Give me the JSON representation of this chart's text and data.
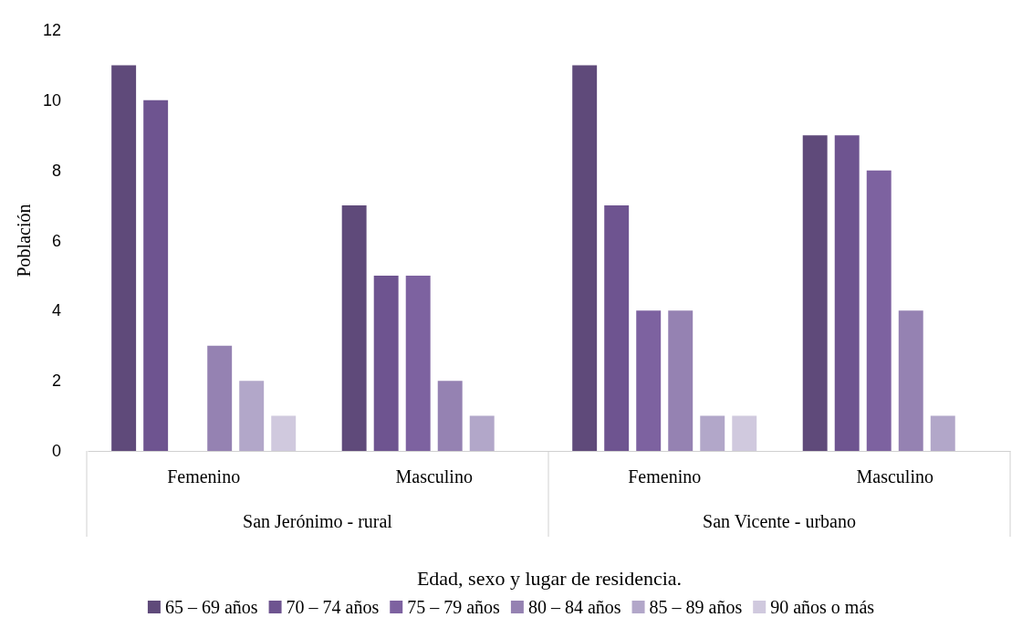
{
  "chart_data": {
    "type": "bar",
    "xlabel": "Edad, sexo y lugar de residencia.",
    "ylabel": "Población",
    "categories": [
      "Femenino",
      "Masculino",
      "Femenino",
      "Masculino"
    ],
    "annotations": [
      "San Jerónimo - rural",
      "San Vicente - urbano"
    ],
    "series": [
      {
        "name": "65 – 69 años",
        "color": "#5f4a7a",
        "values": [
          11,
          7,
          11,
          9
        ]
      },
      {
        "name": "70 – 74 años",
        "color": "#6e5490",
        "values": [
          10,
          5,
          7,
          9
        ]
      },
      {
        "name": "75 – 79 años",
        "color": "#7d62a0",
        "values": [
          null,
          5,
          4,
          8
        ]
      },
      {
        "name": "80 – 84 años",
        "color": "#9582b2",
        "values": [
          3,
          2,
          4,
          4
        ]
      },
      {
        "name": "85 – 89 años",
        "color": "#b2a7c9",
        "values": [
          2,
          1,
          1,
          1
        ]
      },
      {
        "name": "90 años o más",
        "color": "#d0c9de",
        "values": [
          1,
          null,
          1,
          null
        ]
      }
    ],
    "ylim": [
      0,
      12
    ],
    "yticks": [
      0,
      2,
      4,
      6,
      8,
      10,
      12
    ],
    "grid": false,
    "legend": "bottom"
  }
}
